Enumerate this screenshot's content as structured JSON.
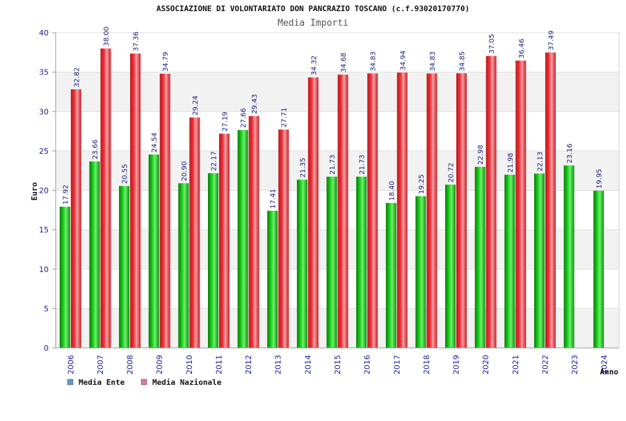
{
  "chart_data": {
    "type": "bar",
    "title": "ASSOCIAZIONE DI VOLONTARIATO DON PANCRAZIO TOSCANO (c.f.93020170770)",
    "subtitle": "Media Importi",
    "ylabel": "Euro",
    "xlabel": "Anno",
    "ylim": [
      0,
      40
    ],
    "yticks": [
      0,
      5,
      10,
      15,
      20,
      25,
      30,
      35,
      40
    ],
    "grid": true,
    "legend_position": "bottom-left",
    "categories": [
      "2006",
      "2007",
      "2008",
      "2009",
      "2010",
      "2011",
      "2012",
      "2013",
      "2014",
      "2015",
      "2016",
      "2017",
      "2018",
      "2019",
      "2020",
      "2021",
      "2022",
      "2023",
      "2024"
    ],
    "series": [
      {
        "name": "Media Ente",
        "color": "#11b511",
        "legend_color": "#5b9bd5",
        "values": [
          17.92,
          23.66,
          20.55,
          24.54,
          20.9,
          22.17,
          27.66,
          17.41,
          21.35,
          21.73,
          21.73,
          18.4,
          19.25,
          20.72,
          22.98,
          21.98,
          22.13,
          23.16,
          19.95
        ],
        "labels": [
          "17.92",
          "23.66",
          "20.55",
          "24.54",
          "20.90",
          "22.17",
          "27.66",
          "17.41",
          "21.35",
          "21.73",
          "21.73",
          "18.40",
          "19.25",
          "20.72",
          "22.98",
          "21.98",
          "22.13",
          "23.16",
          "19.95"
        ]
      },
      {
        "name": "Media Nazionale",
        "color": "#e8262e",
        "legend_color": "#d977a8",
        "values": [
          32.82,
          38.0,
          37.36,
          34.79,
          29.24,
          27.19,
          29.43,
          27.71,
          34.32,
          34.68,
          34.83,
          34.94,
          34.83,
          34.85,
          37.05,
          36.46,
          37.49,
          null,
          null
        ],
        "labels": [
          "32.82",
          "38.00",
          "37.36",
          "34.79",
          "29.24",
          "27.19",
          "29.43",
          "27.71",
          "34.32",
          "34.68",
          "34.83",
          "34.94",
          "34.83",
          "34.85",
          "37.05",
          "36.46",
          "37.49",
          null,
          null
        ]
      }
    ]
  }
}
